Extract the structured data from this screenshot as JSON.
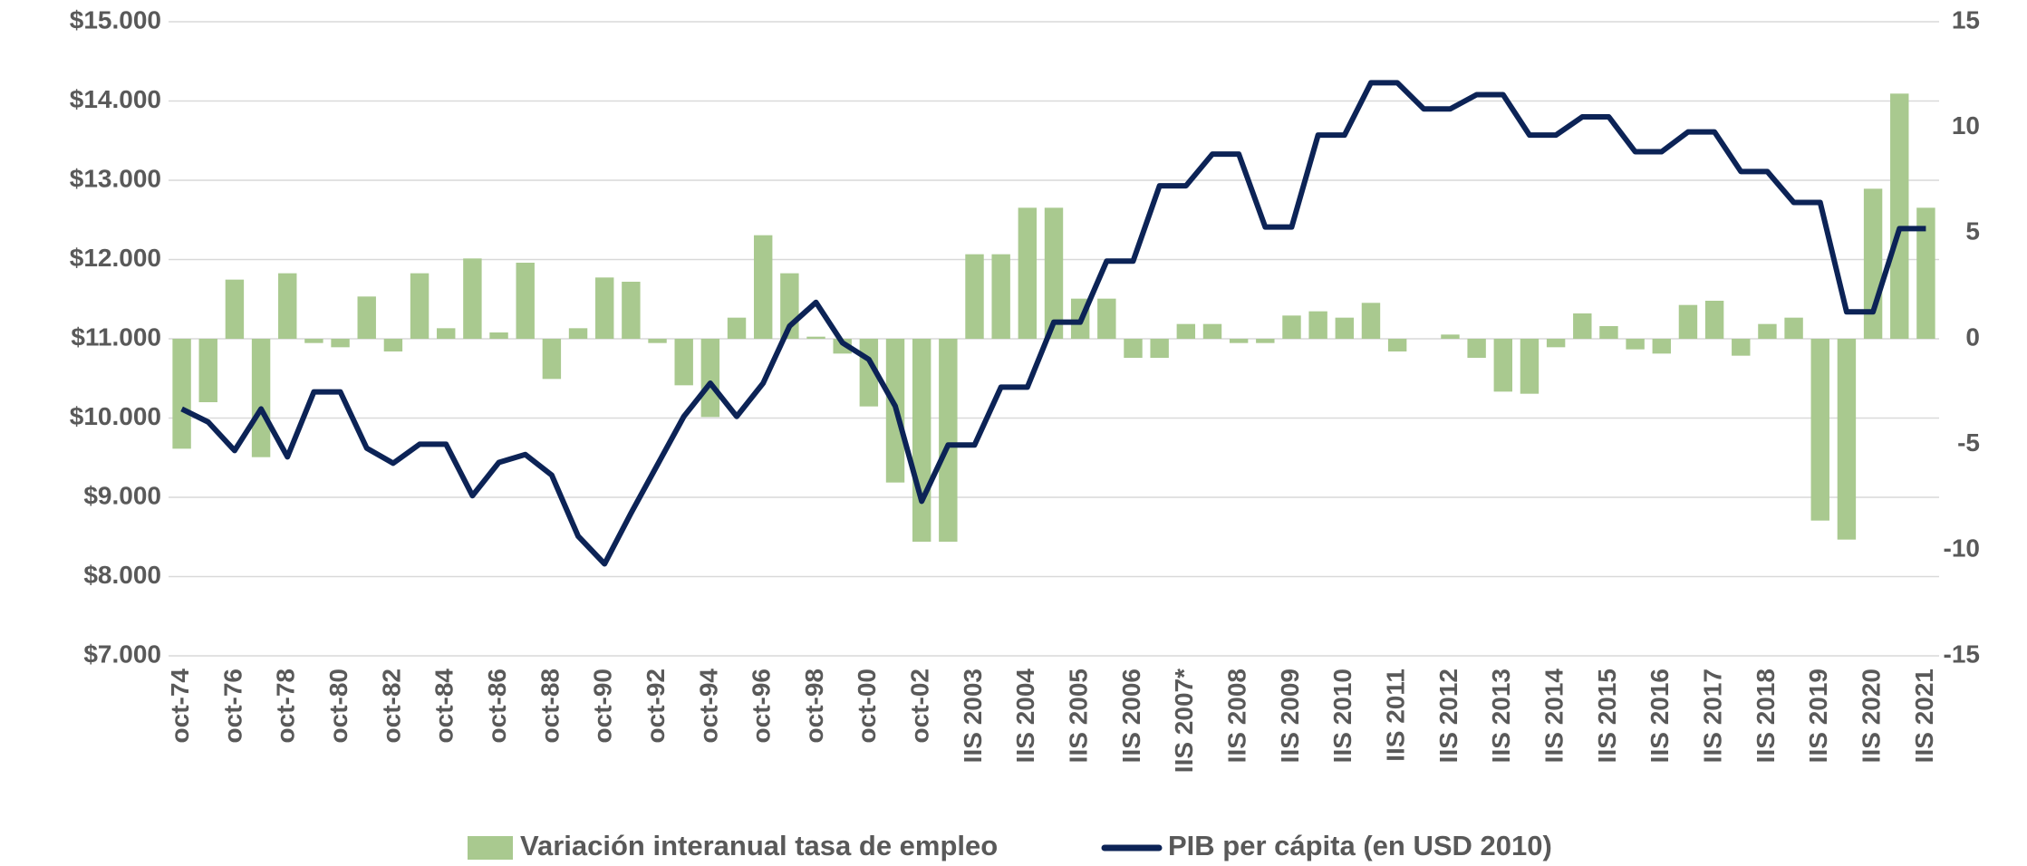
{
  "chart_data": {
    "type": "bar-line",
    "categories": [
      "oct-74",
      null,
      "oct-76",
      null,
      "oct-78",
      null,
      "oct-80",
      null,
      "oct-82",
      null,
      "oct-84",
      null,
      "oct-86",
      null,
      "oct-88",
      null,
      "oct-90",
      null,
      "oct-92",
      null,
      "oct-94",
      null,
      "oct-96",
      null,
      "oct-98",
      null,
      "oct-00",
      null,
      "oct-02",
      null,
      "IIS 2003",
      null,
      "IIS 2004",
      null,
      "IIS 2005",
      null,
      "IIS 2006",
      null,
      "IIS 2007*",
      null,
      "IIS 2008",
      null,
      "IIS 2009",
      null,
      "IIS 2010",
      null,
      "IIS 2011",
      null,
      "IIS 2012",
      null,
      "IIS 2013",
      null,
      "IIS 2014",
      null,
      "IIS 2015",
      null,
      "IIS 2016",
      null,
      "IIS 2017",
      null,
      "IIS 2018",
      null,
      "IIS 2019",
      null,
      "IIS 2020",
      null,
      "IIS 2021"
    ],
    "series": [
      {
        "name": "Variación interanual tasa de empleo",
        "type": "bar",
        "axis": "y2",
        "color": "#a9c98f",
        "values": [
          -5.2,
          -3.0,
          2.8,
          -5.6,
          3.1,
          -0.2,
          -0.4,
          2.0,
          -0.6,
          3.1,
          0.5,
          3.8,
          0.3,
          3.6,
          -1.9,
          0.5,
          2.9,
          2.7,
          -0.2,
          -2.2,
          -3.7,
          1.0,
          4.9,
          3.1,
          0.1,
          -0.7,
          -3.2,
          -6.8,
          -9.6,
          -9.6,
          4.0,
          4.0,
          6.2,
          6.2,
          1.9,
          1.9,
          -0.9,
          -0.9,
          0.7,
          0.7,
          -0.2,
          -0.2,
          1.1,
          1.3,
          1.0,
          1.7,
          -0.6,
          0,
          0.2,
          -0.9,
          -2.5,
          -2.6,
          -0.4,
          1.2,
          0.6,
          -0.5,
          -0.7,
          1.6,
          1.8,
          -0.8,
          0.7,
          1.0,
          -8.6,
          -9.5,
          7.1,
          11.6,
          6.2
        ]
      },
      {
        "name": "PIB per cápita (en USD 2010)",
        "type": "line",
        "color": "#0c2356",
        "values": [
          10115,
          9950,
          9590,
          10115,
          9510,
          10330,
          10330,
          9620,
          9430,
          9670,
          9670,
          9020,
          9440,
          9540,
          9280,
          8510,
          8160,
          8800,
          9410,
          10020,
          10440,
          10020,
          10440,
          11160,
          11460,
          10950,
          10740,
          10150,
          8950,
          9660,
          9660,
          10390,
          10390,
          11210,
          11210,
          11980,
          11980,
          12930,
          12930,
          13330,
          13330,
          12410,
          12410,
          13570,
          13570,
          14230,
          14230,
          13900,
          13900,
          14080,
          14080,
          13570,
          13570,
          13800,
          13800,
          13360,
          13360,
          13610,
          13610,
          13110,
          13110,
          12720,
          12720,
          11340,
          11340,
          12390,
          12390
        ]
      }
    ],
    "ylim": [
      7000,
      15000
    ],
    "yticks": [
      {
        "value": 7000,
        "label": "$7.000"
      },
      {
        "value": 8000,
        "label": "$8.000"
      },
      {
        "value": 9000,
        "label": "$9.000"
      },
      {
        "value": 10000,
        "label": "$10.000"
      },
      {
        "value": 11000,
        "label": "$11.000"
      },
      {
        "value": 12000,
        "label": "$12.000"
      },
      {
        "value": 13000,
        "label": "$13.000"
      },
      {
        "value": 14000,
        "label": "$14.000"
      },
      {
        "value": 15000,
        "label": "$15.000"
      }
    ],
    "y2lim": [
      -15,
      15
    ],
    "y2ticks": [
      -15,
      -10,
      -5,
      0,
      5,
      10,
      15
    ],
    "grid": true,
    "legend": "bottom"
  }
}
